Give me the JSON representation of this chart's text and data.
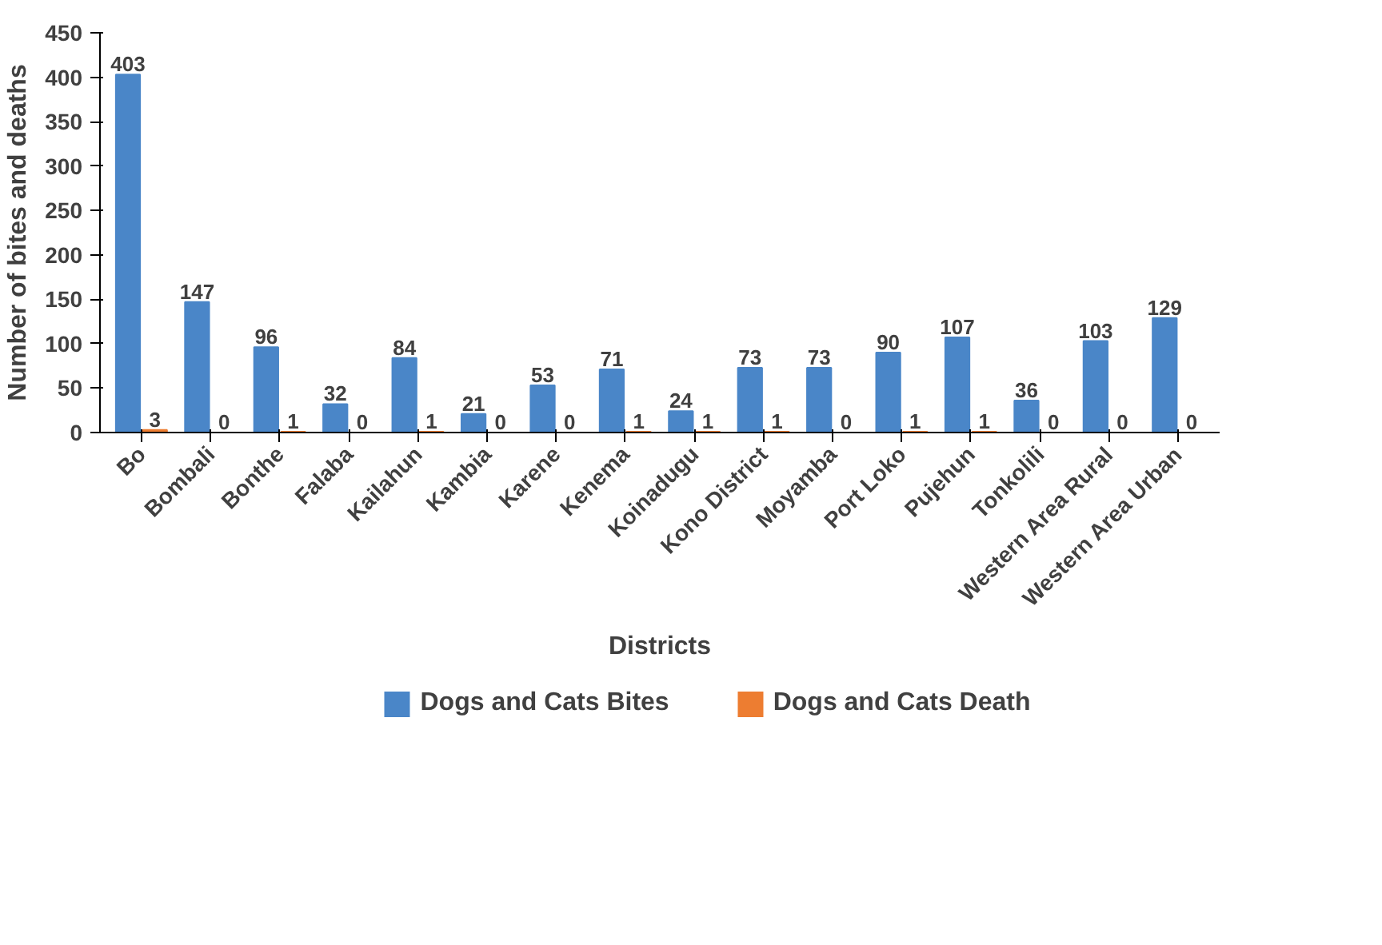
{
  "chart_data": {
    "type": "bar",
    "xlabel": "Districts",
    "ylabel": "Number of bites and deaths",
    "categories": [
      "Bo",
      "Bombali",
      "Bonthe",
      "Falaba",
      "Kailahun",
      "Kambia",
      "Karene",
      "Kenema",
      "Koinadugu",
      "Kono District",
      "Moyamba",
      "Port Loko",
      "Pujehun",
      "Tonkolili",
      "Western Area Rural",
      "Western Area Urban"
    ],
    "series": [
      {
        "name": "Dogs and Cats Bites",
        "color": "#4a86c8",
        "values": [
          403,
          147,
          96,
          32,
          84,
          21,
          53,
          71,
          24,
          73,
          73,
          90,
          107,
          36,
          103,
          129
        ]
      },
      {
        "name": "Dogs and Cats Death",
        "color": "#ed7d31",
        "values": [
          3,
          0,
          1,
          0,
          1,
          0,
          0,
          1,
          1,
          1,
          0,
          1,
          1,
          0,
          0,
          0
        ]
      }
    ],
    "ylim": [
      0,
      450
    ],
    "yticks": [
      0,
      50,
      100,
      150,
      200,
      250,
      300,
      350,
      400,
      450
    ],
    "grid": false,
    "legend": "bottom",
    "data_labels": true
  }
}
